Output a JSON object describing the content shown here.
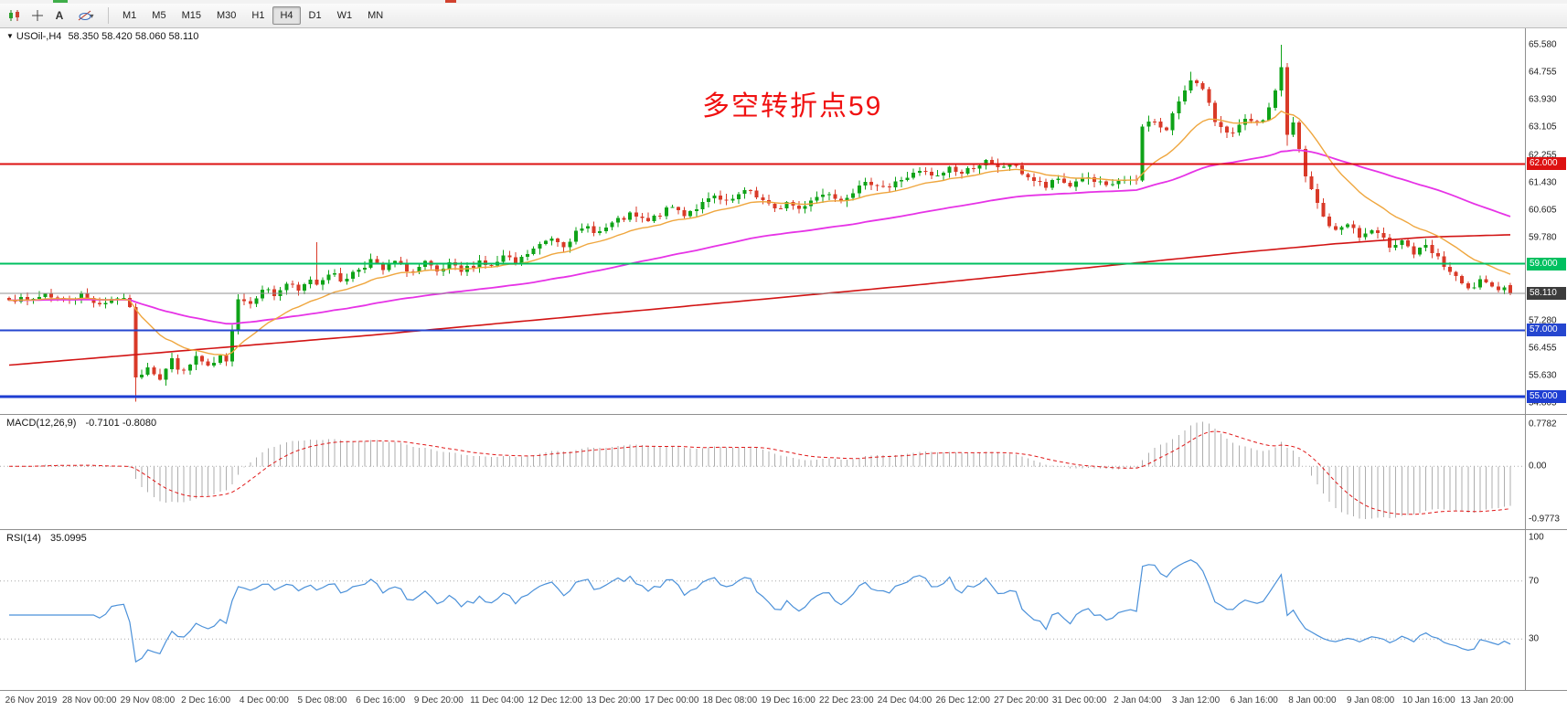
{
  "colors": {
    "candle_up": "#0fa318",
    "candle_down": "#d93a28",
    "ma_fast": "#efa63e",
    "ma_mid": "#e633e6",
    "ma_slow": "#d21414",
    "macd_hist": "#aeaeae",
    "macd_signal": "#e01818",
    "rsi_line": "#4a90d9",
    "level_dotted": "#a8a8a8",
    "annotation": "#f01111",
    "bid_line": "#909090"
  },
  "toolbar": {
    "text_tool_label": "A",
    "timeframes": [
      "M1",
      "M5",
      "M15",
      "M30",
      "H1",
      "H4",
      "D1",
      "W1",
      "MN"
    ],
    "active_timeframe": "H4"
  },
  "main_chart": {
    "symbol_label": "USOil-,H4",
    "ohlc_text": "58.350 58.420 58.060 58.110",
    "annotation": {
      "text": "多空转折点59"
    },
    "price_axis": {
      "labels": [
        {
          "text": "65.580",
          "value": 65.58
        },
        {
          "text": "64.755",
          "value": 64.755
        },
        {
          "text": "63.930",
          "value": 63.93
        },
        {
          "text": "63.105",
          "value": 63.105
        },
        {
          "text": "62.255",
          "value": 62.255
        },
        {
          "text": "61.430",
          "value": 61.43
        },
        {
          "text": "60.605",
          "value": 60.605
        },
        {
          "text": "59.780",
          "value": 59.78
        },
        {
          "text": "57.280",
          "value": 57.28
        },
        {
          "text": "56.455",
          "value": 56.455
        },
        {
          "text": "55.630",
          "value": 55.63
        },
        {
          "text": "54.805",
          "value": 54.805
        }
      ]
    },
    "hlines": [
      {
        "price": 62.0,
        "color": "#dd1111",
        "width": 2,
        "label": "62.000",
        "label_fg": "#ffffff"
      },
      {
        "price": 59.0,
        "color": "#00c060",
        "width": 2,
        "label": "59.000",
        "label_fg": "#ffffff"
      },
      {
        "price": 57.0,
        "color": "#2546cf",
        "width": 2,
        "label": "57.000",
        "label_fg": "#ffffff"
      },
      {
        "price": 55.0,
        "color": "#1e3ed2",
        "width": 3,
        "label": "55.000",
        "label_fg": "#ffffff"
      }
    ],
    "current_price": {
      "value": 58.11,
      "label": "58.110",
      "badge_bg": "#3c3c3c",
      "badge_fg": "#ffffff"
    }
  },
  "macd": {
    "title": "MACD(12,26,9)",
    "values_text": "-0.7101 -0.8080",
    "scale": [
      {
        "text": "0.7782",
        "value": 0.7782
      },
      {
        "text": "0.00",
        "value": 0
      },
      {
        "text": "-0.9773",
        "value": -0.9773
      }
    ]
  },
  "rsi": {
    "title": "RSI(14)",
    "value_text": "35.0995",
    "scale": [
      {
        "text": "100",
        "value": 100
      },
      {
        "text": "70",
        "value": 70
      },
      {
        "text": "30",
        "value": 30
      }
    ],
    "levels": [
      70,
      30
    ]
  },
  "time_axis": {
    "labels": [
      "26 Nov 2019",
      "28 Nov 00:00",
      "29 Nov 08:00",
      "2 Dec 16:00",
      "4 Dec 00:00",
      "5 Dec 08:00",
      "6 Dec 16:00",
      "9 Dec 20:00",
      "11 Dec 04:00",
      "12 Dec 12:00",
      "13 Dec 20:00",
      "17 Dec 00:00",
      "18 Dec 08:00",
      "19 Dec 16:00",
      "22 Dec 23:00",
      "24 Dec 04:00",
      "26 Dec 12:00",
      "27 Dec 20:00",
      "31 Dec 00:00",
      "2 Jan 04:00",
      "3 Jan 12:00",
      "6 Jan 16:00",
      "8 Jan 00:00",
      "9 Jan 08:00",
      "10 Jan 16:00",
      "13 Jan 20:00"
    ]
  },
  "chart_data": {
    "type": "candlestick",
    "symbol": "USOil-",
    "timeframe": "H4",
    "bars": 250,
    "y_range": [
      54.48,
      66.08
    ],
    "seed": 7,
    "noise_amp": 0.1,
    "last_bar": {
      "open": 58.35,
      "high": 58.42,
      "low": 58.06,
      "close": 58.11
    },
    "close_anchors": [
      [
        0,
        58.0
      ],
      [
        3,
        57.85
      ],
      [
        6,
        58.1
      ],
      [
        9,
        57.9
      ],
      [
        12,
        58.05
      ],
      [
        15,
        57.8
      ],
      [
        18,
        58.0
      ],
      [
        20,
        57.75
      ],
      [
        21,
        55.5
      ],
      [
        23,
        55.95
      ],
      [
        25,
        55.55
      ],
      [
        27,
        56.1
      ],
      [
        29,
        55.7
      ],
      [
        31,
        56.2
      ],
      [
        33,
        55.85
      ],
      [
        35,
        56.15
      ],
      [
        36,
        56.0
      ],
      [
        37,
        57.1
      ],
      [
        38,
        58.0
      ],
      [
        40,
        57.8
      ],
      [
        42,
        58.3
      ],
      [
        44,
        58.05
      ],
      [
        46,
        58.4
      ],
      [
        48,
        58.15
      ],
      [
        50,
        58.55
      ],
      [
        51,
        58.4
      ],
      [
        53,
        58.75
      ],
      [
        55,
        58.5
      ],
      [
        58,
        58.85
      ],
      [
        60,
        59.1
      ],
      [
        62,
        58.8
      ],
      [
        64,
        59.05
      ],
      [
        67,
        58.75
      ],
      [
        69,
        59.0
      ],
      [
        71,
        58.7
      ],
      [
        73,
        58.95
      ],
      [
        75,
        58.75
      ],
      [
        78,
        59.1
      ],
      [
        80,
        58.9
      ],
      [
        82,
        59.2
      ],
      [
        84,
        59.0
      ],
      [
        86,
        59.3
      ],
      [
        88,
        59.55
      ],
      [
        90,
        59.8
      ],
      [
        92,
        59.6
      ],
      [
        94,
        59.9
      ],
      [
        96,
        60.1
      ],
      [
        98,
        59.95
      ],
      [
        100,
        60.2
      ],
      [
        103,
        60.45
      ],
      [
        106,
        60.25
      ],
      [
        108,
        60.5
      ],
      [
        110,
        60.7
      ],
      [
        112,
        60.5
      ],
      [
        115,
        60.8
      ],
      [
        117,
        61.0
      ],
      [
        119,
        60.8
      ],
      [
        121,
        61.05
      ],
      [
        123,
        61.2
      ],
      [
        125,
        60.9
      ],
      [
        127,
        60.6
      ],
      [
        129,
        60.85
      ],
      [
        131,
        60.65
      ],
      [
        133,
        60.95
      ],
      [
        136,
        61.15
      ],
      [
        138,
        60.95
      ],
      [
        140,
        61.2
      ],
      [
        143,
        61.45
      ],
      [
        146,
        61.3
      ],
      [
        148,
        61.55
      ],
      [
        151,
        61.75
      ],
      [
        154,
        61.6
      ],
      [
        156,
        61.9
      ],
      [
        158,
        61.7
      ],
      [
        160,
        61.95
      ],
      [
        162,
        62.05
      ],
      [
        164,
        61.85
      ],
      [
        166,
        62.0
      ],
      [
        168,
        61.75
      ],
      [
        170,
        61.5
      ],
      [
        172,
        61.3
      ],
      [
        174,
        61.55
      ],
      [
        176,
        61.35
      ],
      [
        178,
        61.6
      ],
      [
        180,
        61.45
      ],
      [
        182,
        61.3
      ],
      [
        184,
        61.5
      ],
      [
        186,
        61.45
      ],
      [
        187,
        61.5
      ],
      [
        188,
        63.1
      ],
      [
        189,
        63.35
      ],
      [
        192,
        63.0
      ],
      [
        194,
        63.9
      ],
      [
        196,
        64.6
      ],
      [
        198,
        64.2
      ],
      [
        200,
        63.3
      ],
      [
        203,
        62.9
      ],
      [
        205,
        63.3
      ],
      [
        207,
        63.15
      ],
      [
        209,
        63.6
      ],
      [
        211,
        64.9
      ],
      [
        212,
        62.9
      ],
      [
        213,
        63.2
      ],
      [
        215,
        61.6
      ],
      [
        218,
        60.4
      ],
      [
        220,
        59.95
      ],
      [
        222,
        60.25
      ],
      [
        224,
        59.8
      ],
      [
        226,
        60.0
      ],
      [
        229,
        59.55
      ],
      [
        231,
        59.75
      ],
      [
        233,
        59.3
      ],
      [
        235,
        59.5
      ],
      [
        238,
        58.95
      ],
      [
        240,
        58.55
      ],
      [
        242,
        58.2
      ],
      [
        244,
        58.45
      ],
      [
        246,
        58.25
      ],
      [
        248,
        58.35
      ],
      [
        249,
        58.11
      ]
    ],
    "wick_overrides": [
      {
        "bar": 21,
        "low": 54.85
      },
      {
        "bar": 51,
        "high": 59.65
      },
      {
        "bar": 196,
        "high": 64.78
      },
      {
        "bar": 211,
        "high": 65.58
      },
      {
        "bar": 212,
        "low": 62.55
      }
    ],
    "overlays": {
      "ma_fast": {
        "type": "ema",
        "period": 16
      },
      "ma_mid": {
        "type": "ema",
        "period": 72
      },
      "ma_slow": {
        "type": "anchored",
        "points": [
          [
            0,
            55.95
          ],
          [
            30,
            56.4
          ],
          [
            60,
            56.85
          ],
          [
            90,
            57.35
          ],
          [
            120,
            57.85
          ],
          [
            150,
            58.35
          ],
          [
            180,
            58.9
          ],
          [
            205,
            59.35
          ],
          [
            220,
            59.6
          ],
          [
            235,
            59.8
          ],
          [
            249,
            59.87
          ]
        ]
      }
    },
    "indicators": {
      "macd": {
        "fast": 12,
        "slow": 26,
        "signal": 9,
        "y_range": [
          -1.16,
          0.95
        ]
      },
      "rsi": {
        "period": 14,
        "levels": [
          70,
          30
        ]
      }
    }
  }
}
